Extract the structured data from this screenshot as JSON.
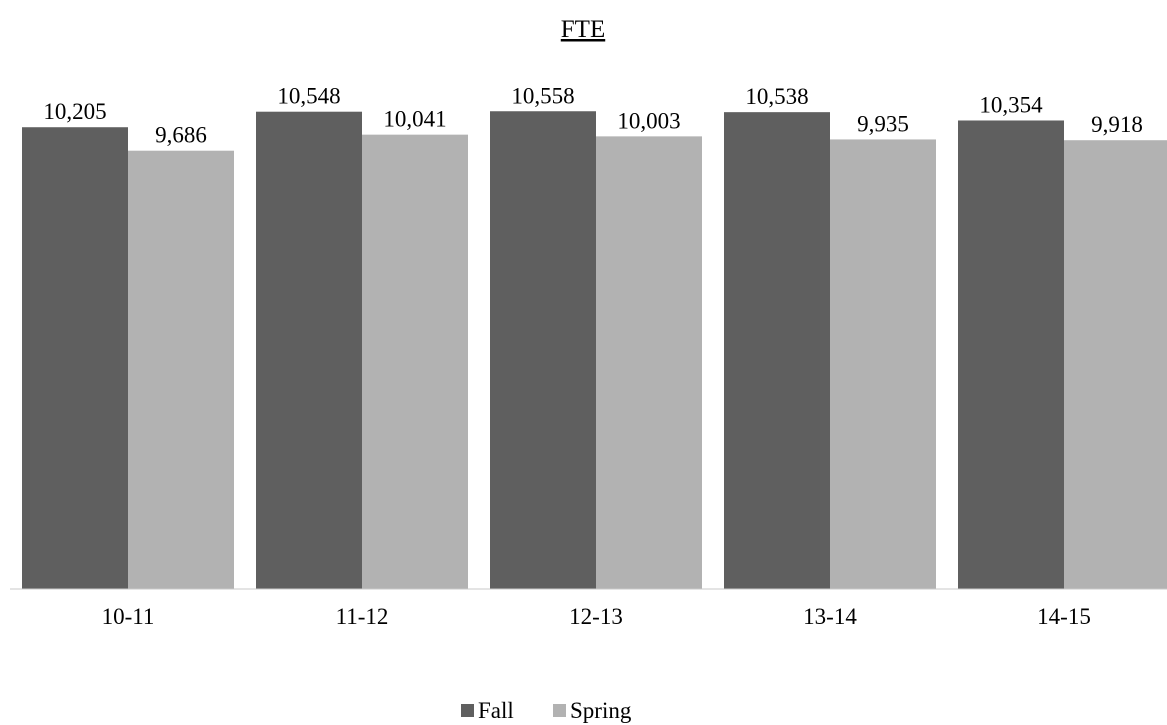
{
  "chart_data": {
    "type": "bar",
    "title": "FTE",
    "xlabel": "",
    "ylabel": "",
    "categories": [
      "10-11",
      "11-12",
      "12-13",
      "13-14",
      "14-15"
    ],
    "series": [
      {
        "name": "Fall",
        "color": "#5f5f5f",
        "values": [
          10205,
          10548,
          10558,
          10538,
          10354
        ],
        "labels": [
          "10,205",
          "10,548",
          "10,558",
          "10,538",
          "10,354"
        ]
      },
      {
        "name": "Spring",
        "color": "#b2b2b2",
        "values": [
          9686,
          10041,
          10003,
          9935,
          9918
        ],
        "labels": [
          "9,686",
          "10,041",
          "10,003",
          "9,935",
          "9,918"
        ]
      }
    ],
    "ylim": [
      0,
      11500
    ],
    "grid": false,
    "legend": "bottom-center"
  }
}
